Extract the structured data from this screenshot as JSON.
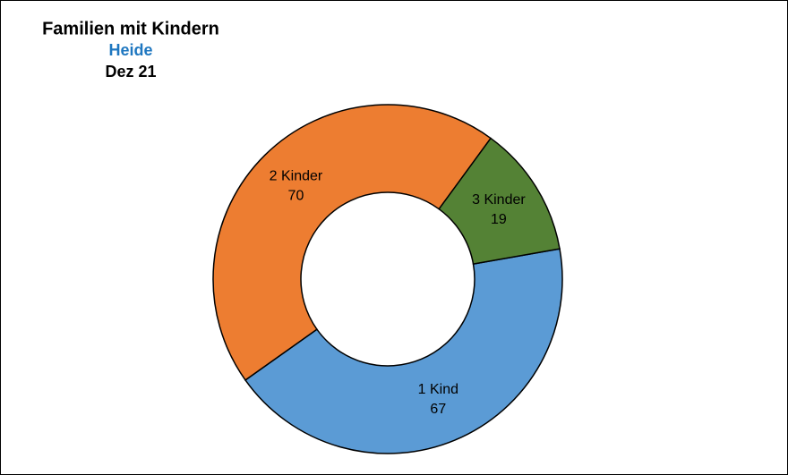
{
  "chart_data": {
    "type": "donut",
    "title": "Familien mit Kindern",
    "subtitle": "Heide",
    "date": "Dez 21",
    "categories": [
      "1 Kind",
      "2 Kinder",
      "3 Kinder"
    ],
    "values": [
      67,
      70,
      19
    ],
    "colors": [
      "#5b9bd5",
      "#ed7d31",
      "#548235"
    ]
  }
}
